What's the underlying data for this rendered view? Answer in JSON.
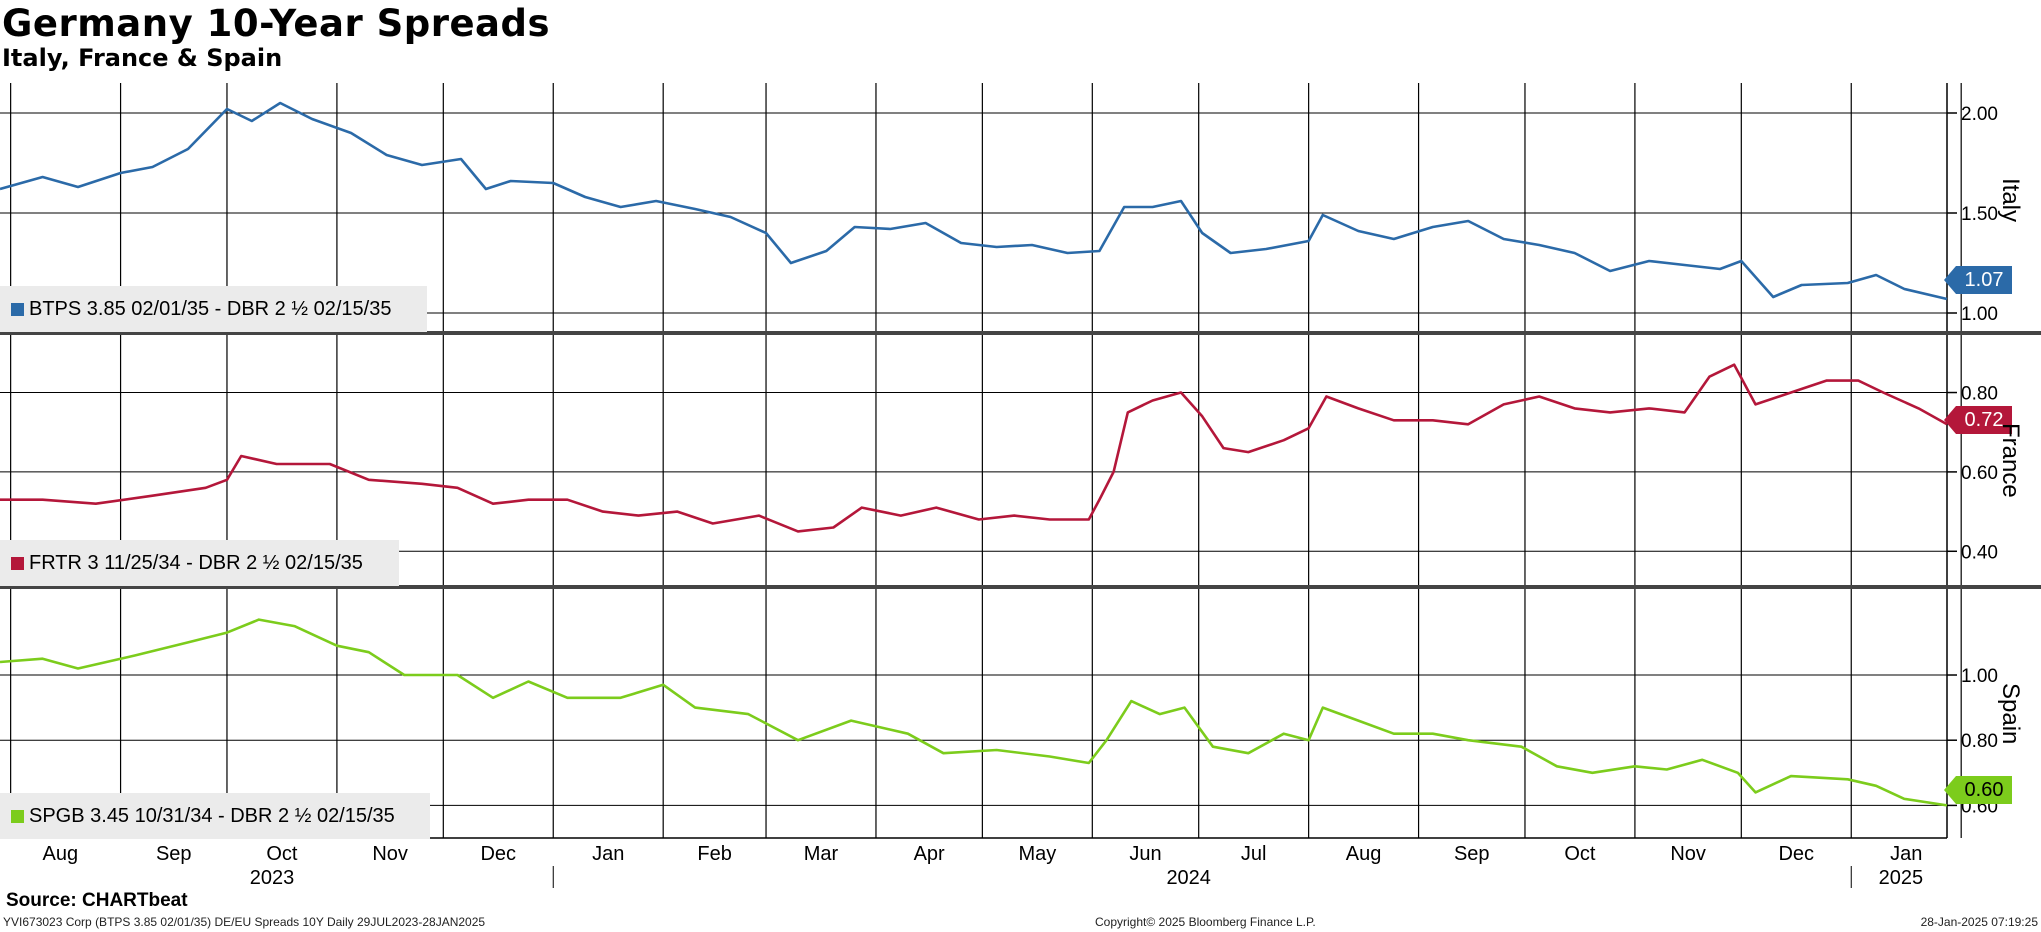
{
  "header": {
    "title": "Germany 10-Year Spreads",
    "subtitle": "Italy, France & Spain"
  },
  "footer": {
    "source": "Source: CHARTbeat",
    "left": "YVI673023 Corp (BTPS 3.85 02/01/35) DE/EU Spreads 10Y  Daily 29JUL2023-28JAN2025",
    "copyright": "Copyright© 2025 Bloomberg Finance L.P.",
    "timestamp": "28-Jan-2025 07:19:25"
  },
  "chart_data": {
    "type": "line",
    "x_axis": {
      "months": [
        "Aug",
        "Sep",
        "Oct",
        "Nov",
        "Dec",
        "Jan",
        "Feb",
        "Mar",
        "Apr",
        "May",
        "Jun",
        "Jul",
        "Aug",
        "Sep",
        "Oct",
        "Nov",
        "Dec",
        "Jan"
      ],
      "years": [
        "2023",
        "2024",
        "2025"
      ],
      "range": [
        "2023-07-29",
        "2025-01-28"
      ]
    },
    "panels": [
      {
        "side_label": "Italy",
        "legend": "BTPS 3.85 02/01/35 - DBR 2 ½ 02/15/35",
        "color": "#2b6aa8",
        "ylim": [
          0.9,
          2.15
        ],
        "yticks": [
          "2.00",
          "1.50",
          "1.00"
        ],
        "last_value": "1.07",
        "series": [
          [
            "2023-07-29",
            1.62
          ],
          [
            "2023-08-10",
            1.68
          ],
          [
            "2023-08-20",
            1.63
          ],
          [
            "2023-09-01",
            1.7
          ],
          [
            "2023-09-10",
            1.73
          ],
          [
            "2023-09-20",
            1.82
          ],
          [
            "2023-10-01",
            2.02
          ],
          [
            "2023-10-08",
            1.96
          ],
          [
            "2023-10-16",
            2.05
          ],
          [
            "2023-10-25",
            1.97
          ],
          [
            "2023-11-05",
            1.9
          ],
          [
            "2023-11-15",
            1.79
          ],
          [
            "2023-11-25",
            1.74
          ],
          [
            "2023-12-06",
            1.77
          ],
          [
            "2023-12-13",
            1.62
          ],
          [
            "2023-12-20",
            1.66
          ],
          [
            "2024-01-01",
            1.65
          ],
          [
            "2024-01-10",
            1.58
          ],
          [
            "2024-01-20",
            1.53
          ],
          [
            "2024-01-30",
            1.56
          ],
          [
            "2024-02-10",
            1.52
          ],
          [
            "2024-02-20",
            1.48
          ],
          [
            "2024-03-01",
            1.4
          ],
          [
            "2024-03-08",
            1.25
          ],
          [
            "2024-03-18",
            1.31
          ],
          [
            "2024-03-26",
            1.43
          ],
          [
            "2024-04-05",
            1.42
          ],
          [
            "2024-04-15",
            1.45
          ],
          [
            "2024-04-25",
            1.35
          ],
          [
            "2024-05-05",
            1.33
          ],
          [
            "2024-05-15",
            1.34
          ],
          [
            "2024-05-25",
            1.3
          ],
          [
            "2024-06-03",
            1.31
          ],
          [
            "2024-06-10",
            1.53
          ],
          [
            "2024-06-18",
            1.53
          ],
          [
            "2024-06-26",
            1.56
          ],
          [
            "2024-07-02",
            1.4
          ],
          [
            "2024-07-10",
            1.3
          ],
          [
            "2024-07-20",
            1.32
          ],
          [
            "2024-08-01",
            1.36
          ],
          [
            "2024-08-05",
            1.49
          ],
          [
            "2024-08-15",
            1.41
          ],
          [
            "2024-08-25",
            1.37
          ],
          [
            "2024-09-05",
            1.43
          ],
          [
            "2024-09-15",
            1.46
          ],
          [
            "2024-09-25",
            1.37
          ],
          [
            "2024-10-05",
            1.34
          ],
          [
            "2024-10-15",
            1.3
          ],
          [
            "2024-10-25",
            1.21
          ],
          [
            "2024-11-05",
            1.26
          ],
          [
            "2024-11-15",
            1.24
          ],
          [
            "2024-11-25",
            1.22
          ],
          [
            "2024-12-01",
            1.26
          ],
          [
            "2024-12-10",
            1.08
          ],
          [
            "2024-12-18",
            1.14
          ],
          [
            "2024-12-31",
            1.15
          ],
          [
            "2025-01-08",
            1.19
          ],
          [
            "2025-01-16",
            1.12
          ],
          [
            "2025-01-28",
            1.07
          ]
        ]
      },
      {
        "side_label": "France",
        "legend": "FRTR 3 11/25/34 - DBR 2 ½ 02/15/35",
        "color": "#b4173a",
        "ylim": [
          0.31,
          0.95
        ],
        "yticks": [
          "0.80",
          "0.60",
          "0.40"
        ],
        "last_value": "0.72",
        "series": [
          [
            "2023-07-29",
            0.53
          ],
          [
            "2023-08-10",
            0.53
          ],
          [
            "2023-08-25",
            0.52
          ],
          [
            "2023-09-10",
            0.54
          ],
          [
            "2023-09-25",
            0.56
          ],
          [
            "2023-10-01",
            0.58
          ],
          [
            "2023-10-05",
            0.64
          ],
          [
            "2023-10-15",
            0.62
          ],
          [
            "2023-10-30",
            0.62
          ],
          [
            "2023-11-10",
            0.58
          ],
          [
            "2023-11-25",
            0.57
          ],
          [
            "2023-12-05",
            0.56
          ],
          [
            "2023-12-15",
            0.52
          ],
          [
            "2023-12-25",
            0.53
          ],
          [
            "2024-01-05",
            0.53
          ],
          [
            "2024-01-15",
            0.5
          ],
          [
            "2024-01-25",
            0.49
          ],
          [
            "2024-02-05",
            0.5
          ],
          [
            "2024-02-15",
            0.47
          ],
          [
            "2024-02-28",
            0.49
          ],
          [
            "2024-03-10",
            0.45
          ],
          [
            "2024-03-20",
            0.46
          ],
          [
            "2024-03-28",
            0.51
          ],
          [
            "2024-04-08",
            0.49
          ],
          [
            "2024-04-18",
            0.51
          ],
          [
            "2024-04-30",
            0.48
          ],
          [
            "2024-05-10",
            0.49
          ],
          [
            "2024-05-20",
            0.48
          ],
          [
            "2024-05-31",
            0.48
          ],
          [
            "2024-06-03",
            0.53
          ],
          [
            "2024-06-07",
            0.6
          ],
          [
            "2024-06-11",
            0.75
          ],
          [
            "2024-06-18",
            0.78
          ],
          [
            "2024-06-26",
            0.8
          ],
          [
            "2024-07-02",
            0.74
          ],
          [
            "2024-07-08",
            0.66
          ],
          [
            "2024-07-15",
            0.65
          ],
          [
            "2024-07-25",
            0.68
          ],
          [
            "2024-08-01",
            0.71
          ],
          [
            "2024-08-06",
            0.79
          ],
          [
            "2024-08-15",
            0.76
          ],
          [
            "2024-08-25",
            0.73
          ],
          [
            "2024-09-05",
            0.73
          ],
          [
            "2024-09-15",
            0.72
          ],
          [
            "2024-09-25",
            0.77
          ],
          [
            "2024-10-05",
            0.79
          ],
          [
            "2024-10-15",
            0.76
          ],
          [
            "2024-10-25",
            0.75
          ],
          [
            "2024-11-05",
            0.76
          ],
          [
            "2024-11-15",
            0.75
          ],
          [
            "2024-11-22",
            0.84
          ],
          [
            "2024-11-29",
            0.87
          ],
          [
            "2024-12-05",
            0.77
          ],
          [
            "2024-12-15",
            0.8
          ],
          [
            "2024-12-25",
            0.83
          ],
          [
            "2025-01-03",
            0.83
          ],
          [
            "2025-01-10",
            0.8
          ],
          [
            "2025-01-20",
            0.76
          ],
          [
            "2025-01-28",
            0.72
          ]
        ]
      },
      {
        "side_label": "Spain",
        "legend": "SPGB 3.45 10/31/34 - DBR 2 ½ 02/15/35",
        "color": "#7ccc1c",
        "ylim": [
          0.5,
          1.27
        ],
        "yticks": [
          "1.00",
          "0.80",
          "0.60"
        ],
        "last_value": "0.60",
        "series": [
          [
            "2023-07-29",
            1.04
          ],
          [
            "2023-08-10",
            1.05
          ],
          [
            "2023-08-20",
            1.02
          ],
          [
            "2023-09-05",
            1.06
          ],
          [
            "2023-09-20",
            1.1
          ],
          [
            "2023-10-01",
            1.13
          ],
          [
            "2023-10-10",
            1.17
          ],
          [
            "2023-10-20",
            1.15
          ],
          [
            "2023-11-01",
            1.09
          ],
          [
            "2023-11-10",
            1.07
          ],
          [
            "2023-11-20",
            1.0
          ],
          [
            "2023-12-05",
            1.0
          ],
          [
            "2023-12-15",
            0.93
          ],
          [
            "2023-12-25",
            0.98
          ],
          [
            "2024-01-05",
            0.93
          ],
          [
            "2024-01-20",
            0.93
          ],
          [
            "2024-02-01",
            0.97
          ],
          [
            "2024-02-10",
            0.9
          ],
          [
            "2024-02-25",
            0.88
          ],
          [
            "2024-03-10",
            0.8
          ],
          [
            "2024-03-25",
            0.86
          ],
          [
            "2024-04-10",
            0.82
          ],
          [
            "2024-04-20",
            0.76
          ],
          [
            "2024-05-05",
            0.77
          ],
          [
            "2024-05-20",
            0.75
          ],
          [
            "2024-05-31",
            0.73
          ],
          [
            "2024-06-05",
            0.8
          ],
          [
            "2024-06-12",
            0.92
          ],
          [
            "2024-06-20",
            0.88
          ],
          [
            "2024-06-27",
            0.9
          ],
          [
            "2024-07-05",
            0.78
          ],
          [
            "2024-07-15",
            0.76
          ],
          [
            "2024-07-25",
            0.82
          ],
          [
            "2024-08-01",
            0.8
          ],
          [
            "2024-08-05",
            0.9
          ],
          [
            "2024-08-15",
            0.86
          ],
          [
            "2024-08-25",
            0.82
          ],
          [
            "2024-09-05",
            0.82
          ],
          [
            "2024-09-15",
            0.8
          ],
          [
            "2024-09-30",
            0.78
          ],
          [
            "2024-10-10",
            0.72
          ],
          [
            "2024-10-20",
            0.7
          ],
          [
            "2024-11-01",
            0.72
          ],
          [
            "2024-11-10",
            0.71
          ],
          [
            "2024-11-20",
            0.74
          ],
          [
            "2024-11-30",
            0.7
          ],
          [
            "2024-12-05",
            0.64
          ],
          [
            "2024-12-15",
            0.69
          ],
          [
            "2024-12-31",
            0.68
          ],
          [
            "2025-01-08",
            0.66
          ],
          [
            "2025-01-16",
            0.62
          ],
          [
            "2025-01-28",
            0.6
          ]
        ]
      }
    ]
  }
}
